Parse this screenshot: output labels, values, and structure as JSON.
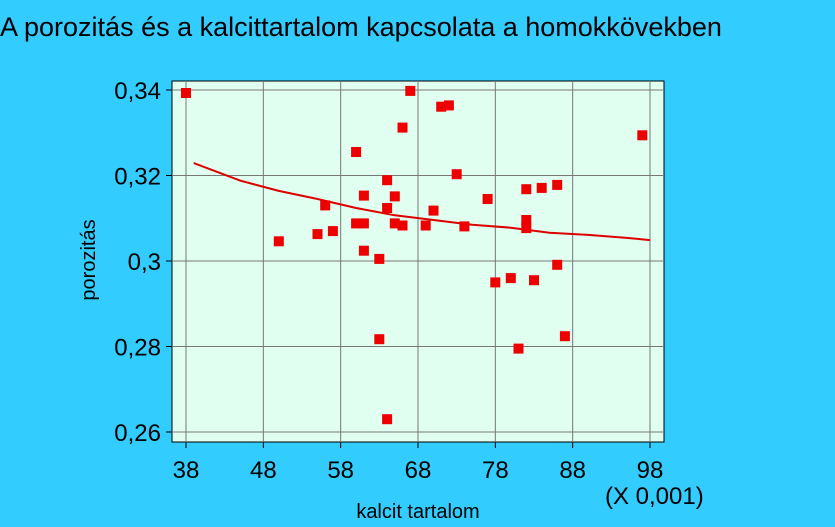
{
  "chart_data": {
    "type": "scatter",
    "title": "A porozitás és a kalcittartalom kapcsolata a homokkövekben",
    "xlabel": "kalcit tartalom",
    "ylabel": "porozitás",
    "x_multiplier": "(X 0,001)",
    "xlim": [
      38,
      98
    ],
    "ylim": [
      0.26,
      0.34
    ],
    "x_ticks": [
      38,
      48,
      58,
      68,
      78,
      88,
      98
    ],
    "x_tick_labels": [
      "38",
      "48",
      "58",
      "68",
      "78",
      "88",
      "98"
    ],
    "y_ticks": [
      0.26,
      0.28,
      0.3,
      0.32,
      0.34
    ],
    "y_tick_labels": [
      "0,26",
      "0,28",
      "0,3",
      "0,32",
      "0,34"
    ],
    "grid": true,
    "colors": {
      "background": "#33ccff",
      "plot_area": "#e0fff0",
      "points": "#ee0000",
      "fit_line": "#dd0000",
      "grid": "#777777"
    },
    "points": [
      {
        "x": 38,
        "y": 0.3393
      },
      {
        "x": 50,
        "y": 0.3046
      },
      {
        "x": 55,
        "y": 0.3063
      },
      {
        "x": 56,
        "y": 0.313
      },
      {
        "x": 57,
        "y": 0.307
      },
      {
        "x": 60,
        "y": 0.3255
      },
      {
        "x": 60,
        "y": 0.3088
      },
      {
        "x": 61,
        "y": 0.3088
      },
      {
        "x": 61,
        "y": 0.3024
      },
      {
        "x": 61,
        "y": 0.3153
      },
      {
        "x": 63,
        "y": 0.3005
      },
      {
        "x": 63,
        "y": 0.2817
      },
      {
        "x": 64,
        "y": 0.3189
      },
      {
        "x": 64,
        "y": 0.3124
      },
      {
        "x": 64,
        "y": 0.263
      },
      {
        "x": 65,
        "y": 0.3151
      },
      {
        "x": 65,
        "y": 0.3088
      },
      {
        "x": 66,
        "y": 0.3312
      },
      {
        "x": 66,
        "y": 0.3083
      },
      {
        "x": 67,
        "y": 0.3398
      },
      {
        "x": 69,
        "y": 0.3083
      },
      {
        "x": 70,
        "y": 0.3118
      },
      {
        "x": 71,
        "y": 0.3361
      },
      {
        "x": 72,
        "y": 0.3364
      },
      {
        "x": 73,
        "y": 0.3203
      },
      {
        "x": 74,
        "y": 0.3081
      },
      {
        "x": 77,
        "y": 0.3145
      },
      {
        "x": 78,
        "y": 0.295
      },
      {
        "x": 80,
        "y": 0.296
      },
      {
        "x": 81,
        "y": 0.2795
      },
      {
        "x": 82,
        "y": 0.3168
      },
      {
        "x": 82,
        "y": 0.3096
      },
      {
        "x": 82,
        "y": 0.3077
      },
      {
        "x": 83,
        "y": 0.2955
      },
      {
        "x": 84,
        "y": 0.3171
      },
      {
        "x": 86,
        "y": 0.3178
      },
      {
        "x": 86,
        "y": 0.2991
      },
      {
        "x": 87,
        "y": 0.2824
      },
      {
        "x": 97,
        "y": 0.3294
      }
    ],
    "fit_line": [
      {
        "x": 39,
        "y": 0.3229
      },
      {
        "x": 45,
        "y": 0.3188
      },
      {
        "x": 50,
        "y": 0.3164
      },
      {
        "x": 55,
        "y": 0.3145
      },
      {
        "x": 60,
        "y": 0.3124
      },
      {
        "x": 65,
        "y": 0.3107
      },
      {
        "x": 70,
        "y": 0.3096
      },
      {
        "x": 75,
        "y": 0.3085
      },
      {
        "x": 80,
        "y": 0.3078
      },
      {
        "x": 85,
        "y": 0.3066
      },
      {
        "x": 90,
        "y": 0.3061
      },
      {
        "x": 95,
        "y": 0.3054
      },
      {
        "x": 98,
        "y": 0.3049
      }
    ]
  }
}
